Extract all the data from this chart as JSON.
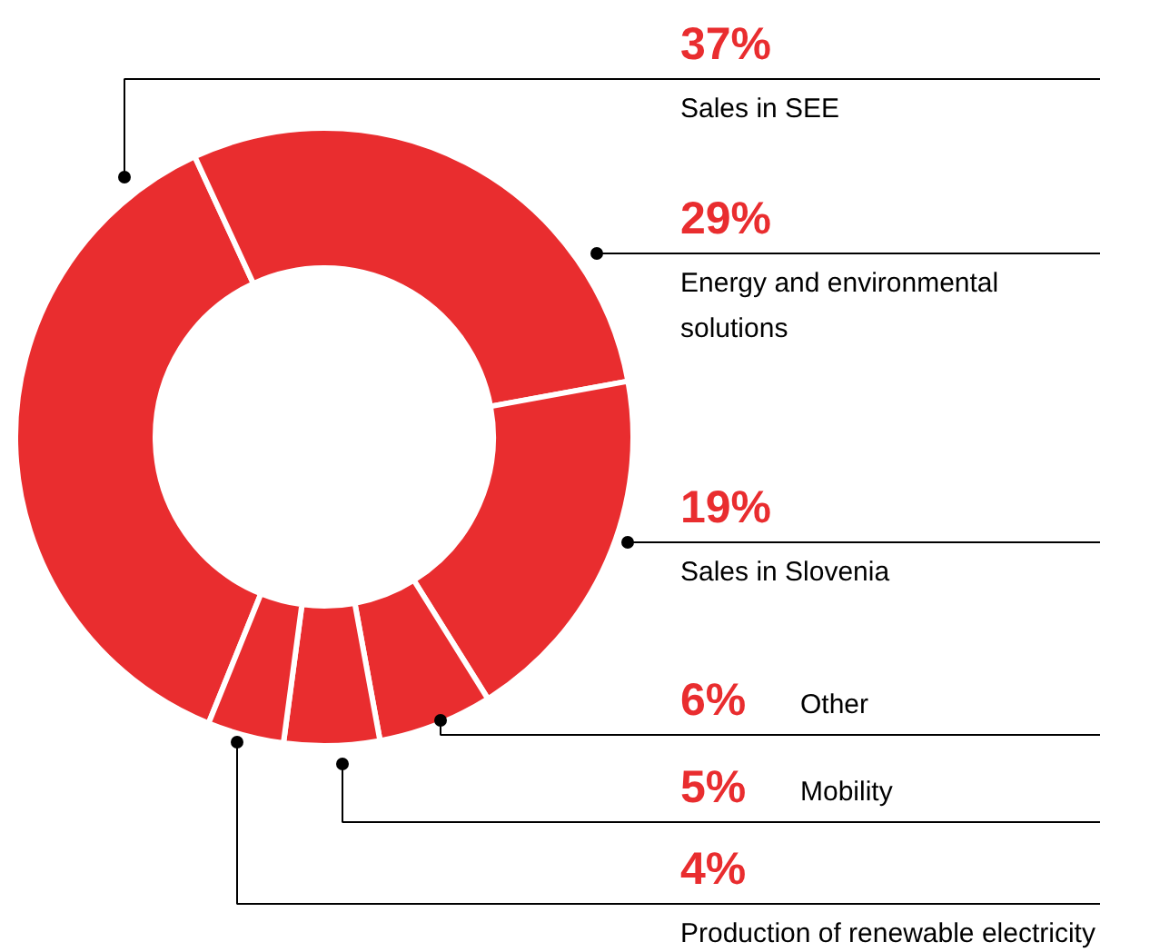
{
  "chart_data": {
    "type": "donut",
    "categories": [
      "Sales in SEE",
      "Energy and environmental solutions",
      "Sales in Slovenia",
      "Other",
      "Mobility",
      "Production of renewable electricity"
    ],
    "values": [
      37,
      29,
      19,
      6,
      5,
      4
    ],
    "value_labels": [
      "37%",
      "29%",
      "19%",
      "6%",
      "5%",
      "4%"
    ],
    "colors": [
      "#e92d2f",
      "#e92d2f",
      "#e92d2f",
      "#e92d2f",
      "#e92d2f",
      "#e92d2f"
    ]
  }
}
